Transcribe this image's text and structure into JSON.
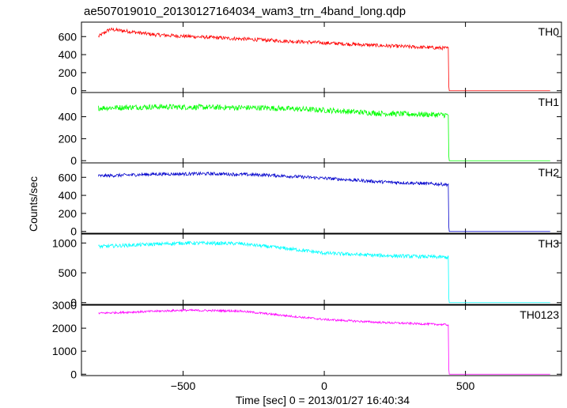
{
  "chart_data": {
    "type": "line",
    "title": "ae507019010_20130127164034_wam3_trn_4band_long.qdp",
    "xlabel": "Time [sec] 0 = 2013/01/27 16:40:34",
    "ylabel": "Counts/sec",
    "xlim": [
      -860,
      840
    ],
    "x_ticks": [
      -500,
      0,
      500
    ],
    "x_tick_labels": [
      "−500",
      "0",
      "500"
    ],
    "grid": false,
    "panels": [
      {
        "name": "TH0",
        "color": "#ff0000",
        "ylim": [
          -20,
          760
        ],
        "y_ticks": [
          0,
          200,
          400,
          600
        ],
        "noise": 20,
        "series_x": [
          -800,
          -760,
          -700,
          -600,
          -400,
          -200,
          0,
          200,
          440,
          441,
          800
        ],
        "series_y": [
          600,
          680,
          660,
          620,
          590,
          560,
          530,
          500,
          470,
          0,
          0
        ]
      },
      {
        "name": "TH1",
        "color": "#00ff00",
        "ylim": [
          -20,
          620
        ],
        "y_ticks": [
          0,
          200,
          400
        ],
        "noise": 25,
        "series_x": [
          -800,
          -600,
          -400,
          -200,
          0,
          200,
          440,
          441,
          800
        ],
        "series_y": [
          480,
          490,
          485,
          480,
          460,
          430,
          415,
          0,
          0
        ]
      },
      {
        "name": "TH2",
        "color": "#0000cc",
        "ylim": [
          -20,
          760
        ],
        "y_ticks": [
          0,
          200,
          400,
          600
        ],
        "noise": 18,
        "series_x": [
          -800,
          -600,
          -400,
          -200,
          0,
          200,
          440,
          441,
          800
        ],
        "series_y": [
          615,
          635,
          640,
          625,
          590,
          550,
          520,
          0,
          0
        ]
      },
      {
        "name": "TH3",
        "color": "#00ffff",
        "ylim": [
          -30,
          1150
        ],
        "y_ticks": [
          0,
          500,
          1000
        ],
        "noise": 30,
        "series_x": [
          -800,
          -700,
          -500,
          -300,
          -100,
          0,
          200,
          440,
          441,
          800
        ],
        "series_y": [
          940,
          960,
          1000,
          990,
          890,
          830,
          790,
          760,
          0,
          0
        ]
      },
      {
        "name": "TH0123",
        "color": "#ff00ff",
        "ylim": [
          -60,
          3000
        ],
        "y_ticks": [
          0,
          1000,
          2000,
          3000
        ],
        "noise": 45,
        "series_x": [
          -800,
          -500,
          -300,
          -100,
          0,
          200,
          440,
          441,
          800
        ],
        "series_y": [
          2650,
          2780,
          2750,
          2500,
          2380,
          2250,
          2150,
          0,
          0
        ]
      }
    ]
  }
}
